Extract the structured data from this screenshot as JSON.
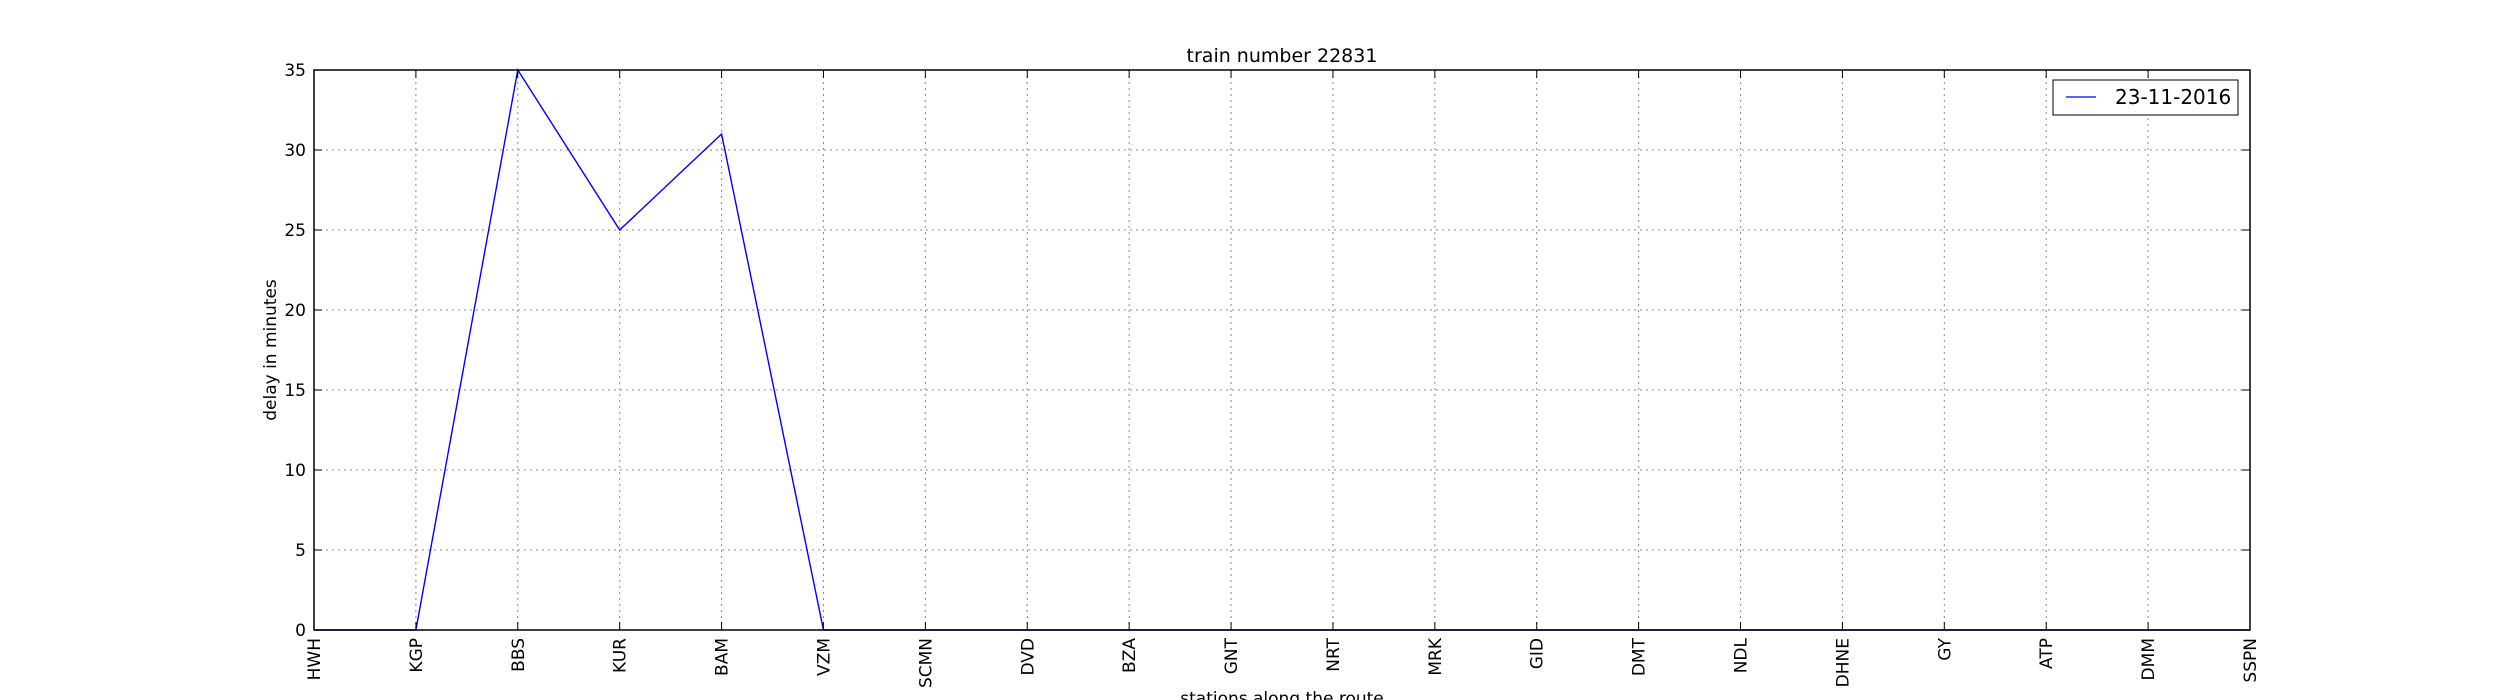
{
  "chart_data": {
    "type": "line",
    "title": "train number 22831",
    "xlabel": "stations along the route",
    "ylabel": "delay in minutes",
    "categories": [
      "HWH",
      "KGP",
      "BBS",
      "KUR",
      "BAM",
      "VZM",
      "SCMN",
      "DVD",
      "BZA",
      "GNT",
      "NRT",
      "MRK",
      "GID",
      "DMT",
      "NDL",
      "DHNE",
      "GY",
      "ATP",
      "DMM",
      "SSPN"
    ],
    "series": [
      {
        "name": "23-11-2016",
        "color": "#0000ff",
        "values": [
          0,
          0,
          35,
          25,
          31,
          0,
          0,
          0,
          0,
          0,
          0,
          0,
          0,
          0,
          0,
          0,
          0,
          0,
          0,
          0
        ]
      }
    ],
    "ylim": [
      0,
      35
    ],
    "yticks": [
      0,
      5,
      10,
      15,
      20,
      25,
      30,
      35
    ],
    "grid": true,
    "legend_position": "top-right"
  }
}
